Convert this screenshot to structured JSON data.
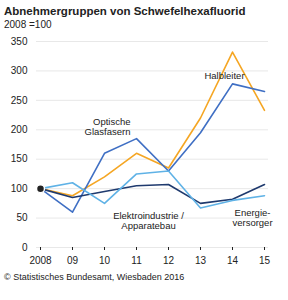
{
  "chart_data": {
    "type": "line",
    "title": "Abnehmergruppen von Schwefelhexafluorid",
    "subtitle": "2008 =100",
    "caption": "© Statistisches Bundesamt, Wiesbaden 2016",
    "categories": [
      "2008",
      "09",
      "10",
      "11",
      "12",
      "13",
      "14",
      "15"
    ],
    "series": [
      {
        "name": "Halbleiter",
        "color": "#f5a623",
        "values": [
          100,
          88,
          120,
          160,
          135,
          220,
          332,
          233
        ]
      },
      {
        "name": "Optische\nGlasfasern",
        "color": "#3f6fc4",
        "values": [
          100,
          60,
          160,
          185,
          130,
          195,
          278,
          265
        ]
      },
      {
        "name": "Elektroindustrie /\nApparatebau",
        "color": "#1f3a6e",
        "values": [
          100,
          85,
          95,
          105,
          107,
          75,
          82,
          107
        ]
      },
      {
        "name": "Energie-\nversorger",
        "color": "#5fb2e6",
        "values": [
          100,
          110,
          75,
          125,
          130,
          67,
          80,
          88
        ]
      }
    ],
    "ylim": [
      0,
      350
    ],
    "yticks": [
      0,
      50,
      100,
      150,
      200,
      250,
      300,
      350
    ],
    "grid": true
  }
}
